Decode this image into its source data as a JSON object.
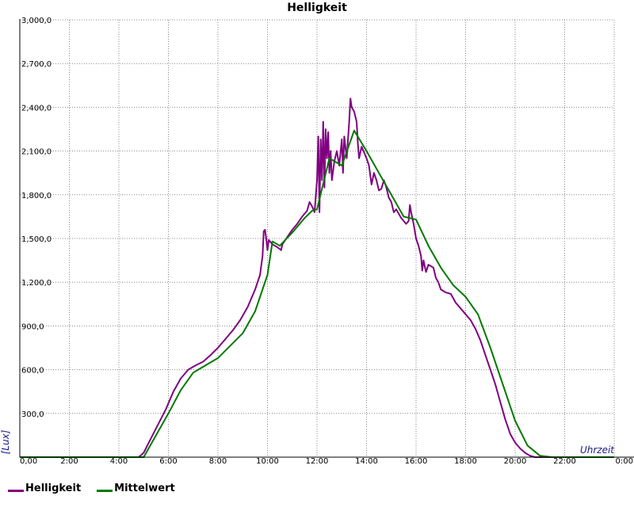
{
  "chart_data": {
    "type": "line",
    "title": "Helligkeit",
    "xlabel": "Uhrzeit",
    "ylabel": "[Lux]",
    "xlim": [
      0,
      24
    ],
    "ylim": [
      0,
      3000
    ],
    "x_ticks": [
      "0,00",
      "2:00",
      "4:00",
      "6:00",
      "8:00",
      "10:00",
      "12:00",
      "14:00",
      "16:00",
      "18:00",
      "20:00",
      "22:00",
      "0:00"
    ],
    "y_ticks": [
      "300,0",
      "600,0",
      "900,0",
      "1,200,0",
      "1,500,0",
      "1,800,0",
      "2,100,0",
      "2,400,0",
      "2,700,0",
      "3,000,0"
    ],
    "grid": true,
    "legend_position": "bottom-left",
    "series": [
      {
        "name": "Helligkeit",
        "color": "#800080",
        "points": [
          [
            0,
            0
          ],
          [
            4.8,
            0
          ],
          [
            5.0,
            30
          ],
          [
            5.3,
            130
          ],
          [
            5.6,
            230
          ],
          [
            5.9,
            330
          ],
          [
            6.2,
            450
          ],
          [
            6.5,
            540
          ],
          [
            6.8,
            600
          ],
          [
            7.1,
            630
          ],
          [
            7.4,
            655
          ],
          [
            7.7,
            700
          ],
          [
            8.0,
            750
          ],
          [
            8.3,
            810
          ],
          [
            8.6,
            870
          ],
          [
            8.9,
            940
          ],
          [
            9.2,
            1030
          ],
          [
            9.5,
            1150
          ],
          [
            9.7,
            1250
          ],
          [
            9.8,
            1380
          ],
          [
            9.85,
            1550
          ],
          [
            9.9,
            1560
          ],
          [
            9.95,
            1500
          ],
          [
            10.0,
            1420
          ],
          [
            10.05,
            1490
          ],
          [
            10.2,
            1460
          ],
          [
            10.4,
            1440
          ],
          [
            10.55,
            1420
          ],
          [
            10.6,
            1460
          ],
          [
            10.8,
            1510
          ],
          [
            11.0,
            1560
          ],
          [
            11.2,
            1600
          ],
          [
            11.4,
            1650
          ],
          [
            11.6,
            1690
          ],
          [
            11.7,
            1750
          ],
          [
            11.8,
            1720
          ],
          [
            11.9,
            1680
          ],
          [
            12.0,
            1900
          ],
          [
            12.05,
            2200
          ],
          [
            12.1,
            1680
          ],
          [
            12.15,
            2180
          ],
          [
            12.2,
            1900
          ],
          [
            12.25,
            2300
          ],
          [
            12.3,
            1850
          ],
          [
            12.35,
            2250
          ],
          [
            12.4,
            2050
          ],
          [
            12.45,
            2230
          ],
          [
            12.5,
            1950
          ],
          [
            12.55,
            2100
          ],
          [
            12.6,
            1900
          ],
          [
            12.7,
            2030
          ],
          [
            12.8,
            2100
          ],
          [
            12.9,
            2000
          ],
          [
            13.0,
            2180
          ],
          [
            13.05,
            1950
          ],
          [
            13.1,
            2200
          ],
          [
            13.2,
            2050
          ],
          [
            13.3,
            2300
          ],
          [
            13.35,
            2460
          ],
          [
            13.4,
            2400
          ],
          [
            13.5,
            2370
          ],
          [
            13.6,
            2300
          ],
          [
            13.65,
            2150
          ],
          [
            13.7,
            2050
          ],
          [
            13.8,
            2130
          ],
          [
            13.9,
            2090
          ],
          [
            14.0,
            2050
          ],
          [
            14.1,
            2000
          ],
          [
            14.2,
            1870
          ],
          [
            14.3,
            1950
          ],
          [
            14.4,
            1900
          ],
          [
            14.5,
            1830
          ],
          [
            14.6,
            1840
          ],
          [
            14.7,
            1900
          ],
          [
            14.8,
            1850
          ],
          [
            14.9,
            1780
          ],
          [
            15.0,
            1750
          ],
          [
            15.1,
            1680
          ],
          [
            15.2,
            1700
          ],
          [
            15.4,
            1640
          ],
          [
            15.6,
            1600
          ],
          [
            15.7,
            1620
          ],
          [
            15.75,
            1730
          ],
          [
            15.8,
            1680
          ],
          [
            15.9,
            1600
          ],
          [
            16.0,
            1500
          ],
          [
            16.1,
            1450
          ],
          [
            16.2,
            1380
          ],
          [
            16.25,
            1280
          ],
          [
            16.3,
            1350
          ],
          [
            16.4,
            1270
          ],
          [
            16.5,
            1320
          ],
          [
            16.7,
            1300
          ],
          [
            16.8,
            1230
          ],
          [
            16.9,
            1200
          ],
          [
            17.0,
            1150
          ],
          [
            17.2,
            1130
          ],
          [
            17.4,
            1120
          ],
          [
            17.6,
            1060
          ],
          [
            17.8,
            1020
          ],
          [
            18.0,
            980
          ],
          [
            18.2,
            940
          ],
          [
            18.4,
            880
          ],
          [
            18.6,
            800
          ],
          [
            18.8,
            700
          ],
          [
            19.0,
            600
          ],
          [
            19.2,
            500
          ],
          [
            19.4,
            380
          ],
          [
            19.6,
            260
          ],
          [
            19.8,
            160
          ],
          [
            20.0,
            100
          ],
          [
            20.2,
            60
          ],
          [
            20.4,
            30
          ],
          [
            20.6,
            10
          ],
          [
            20.8,
            0
          ],
          [
            24,
            0
          ]
        ]
      },
      {
        "name": "Mittelwert",
        "color": "#007a00",
        "points": [
          [
            0,
            0
          ],
          [
            5.0,
            0
          ],
          [
            5.5,
            150
          ],
          [
            6.0,
            300
          ],
          [
            6.5,
            460
          ],
          [
            7.0,
            580
          ],
          [
            8.0,
            680
          ],
          [
            9.0,
            850
          ],
          [
            9.5,
            1000
          ],
          [
            10.0,
            1250
          ],
          [
            10.2,
            1480
          ],
          [
            10.5,
            1450
          ],
          [
            11.0,
            1540
          ],
          [
            11.5,
            1640
          ],
          [
            11.8,
            1690
          ],
          [
            12.0,
            1700
          ],
          [
            12.5,
            2050
          ],
          [
            13.0,
            2000
          ],
          [
            13.5,
            2240
          ],
          [
            14.0,
            2100
          ],
          [
            14.5,
            1950
          ],
          [
            15.0,
            1800
          ],
          [
            15.5,
            1650
          ],
          [
            16.0,
            1630
          ],
          [
            16.5,
            1450
          ],
          [
            17.0,
            1300
          ],
          [
            17.5,
            1180
          ],
          [
            18.0,
            1100
          ],
          [
            18.5,
            980
          ],
          [
            19.0,
            750
          ],
          [
            19.5,
            500
          ],
          [
            20.0,
            250
          ],
          [
            20.5,
            80
          ],
          [
            21.0,
            10
          ],
          [
            21.5,
            0
          ],
          [
            24,
            0
          ]
        ]
      }
    ]
  }
}
